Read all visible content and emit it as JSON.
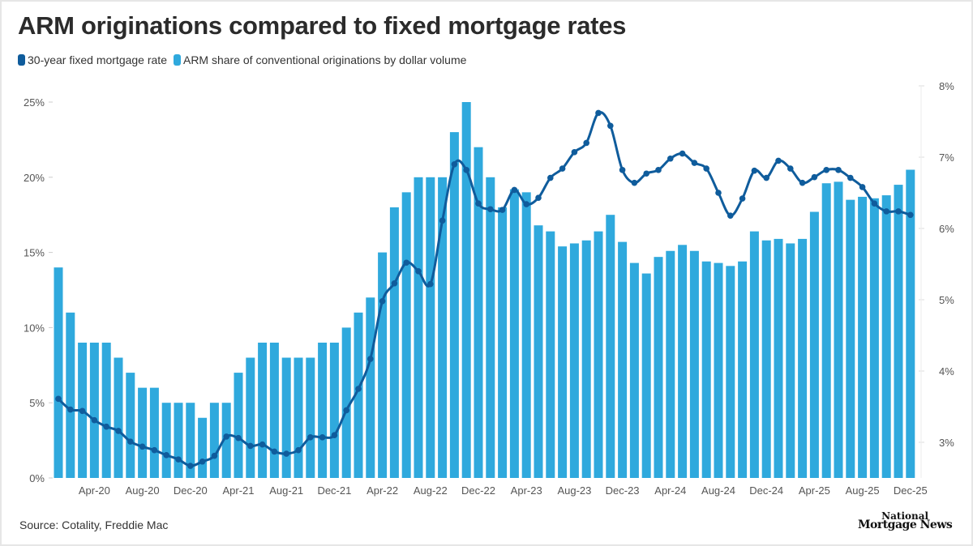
{
  "title": "ARM originations compared to fixed mortgage rates",
  "source": "Source: Cotality, Freddie Mac",
  "logo": {
    "line1": "National",
    "line2": "Mortgage News"
  },
  "colors": {
    "bar": "#2fa9dd",
    "line": "#0f5c9c"
  },
  "chart_data": {
    "type": "bar+line",
    "title": "ARM originations compared to fixed mortgage rates",
    "legend_position": "top-left",
    "grid": false,
    "categories": [
      "Jan-20",
      "Feb-20",
      "Mar-20",
      "Apr-20",
      "May-20",
      "Jun-20",
      "Jul-20",
      "Aug-20",
      "Sep-20",
      "Oct-20",
      "Nov-20",
      "Dec-20",
      "Jan-21",
      "Feb-21",
      "Mar-21",
      "Apr-21",
      "May-21",
      "Jun-21",
      "Jul-21",
      "Aug-21",
      "Sep-21",
      "Oct-21",
      "Nov-21",
      "Dec-21",
      "Jan-22",
      "Feb-22",
      "Mar-22",
      "Apr-22",
      "May-22",
      "Jun-22",
      "Jul-22",
      "Aug-22",
      "Sep-22",
      "Oct-22",
      "Nov-22",
      "Dec-22",
      "Jan-23",
      "Feb-23",
      "Mar-23",
      "Apr-23",
      "May-23",
      "Jun-23",
      "Jul-23",
      "Aug-23",
      "Sep-23",
      "Oct-23",
      "Nov-23",
      "Dec-23",
      "Jan-24",
      "Feb-24",
      "Mar-24",
      "Apr-24",
      "May-24",
      "Jun-24",
      "Jul-24",
      "Aug-24",
      "Sep-24",
      "Oct-24",
      "Nov-24",
      "Dec-24",
      "Jan-25",
      "Feb-25",
      "Mar-25",
      "Apr-25",
      "May-25",
      "Jun-25",
      "Jul-25",
      "Aug-25",
      "Sep-25",
      "Oct-25",
      "Nov-25",
      "Dec-25"
    ],
    "x_tick_labels": [
      "Apr-20",
      "Aug-20",
      "Dec-20",
      "Apr-21",
      "Aug-21",
      "Dec-21",
      "Apr-22",
      "Aug-22",
      "Dec-22",
      "Apr-23",
      "Aug-23",
      "Dec-23",
      "Apr-24",
      "Aug-24",
      "Dec-24",
      "Apr-25",
      "Aug-25",
      "Dec-25"
    ],
    "y_left": {
      "ylim": [
        0,
        25
      ],
      "ticks": [
        "0%",
        "5%",
        "10%",
        "15%",
        "20%",
        "25%"
      ],
      "tick_values": [
        0,
        5,
        10,
        15,
        20,
        25
      ]
    },
    "y_right": {
      "ylim": [
        2.5,
        8
      ],
      "ticks": [
        "3%",
        "4%",
        "5%",
        "6%",
        "7%",
        "8%"
      ],
      "tick_values": [
        3,
        4,
        5,
        6,
        7,
        8
      ]
    },
    "series": [
      {
        "name": "30-year fixed mortgage rate",
        "type": "line",
        "axis": "right",
        "values": [
          3.61,
          3.46,
          3.44,
          3.31,
          3.22,
          3.16,
          3.01,
          2.94,
          2.89,
          2.82,
          2.76,
          2.67,
          2.73,
          2.81,
          3.08,
          3.06,
          2.95,
          2.97,
          2.87,
          2.84,
          2.89,
          3.07,
          3.07,
          3.1,
          3.45,
          3.75,
          4.17,
          4.98,
          5.23,
          5.52,
          5.4,
          5.22,
          6.11,
          6.9,
          6.82,
          6.35,
          6.27,
          6.26,
          6.54,
          6.34,
          6.43,
          6.71,
          6.84,
          7.07,
          7.2,
          7.62,
          7.44,
          6.82,
          6.64,
          6.77,
          6.82,
          6.98,
          7.05,
          6.92,
          6.84,
          6.5,
          6.18,
          6.42,
          6.81,
          6.71,
          6.95,
          6.84,
          6.64,
          6.72,
          6.82,
          6.82,
          6.71,
          6.58,
          6.35,
          6.24,
          6.24,
          6.19
        ]
      },
      {
        "name": "ARM share of conventional originations by dollar volume",
        "type": "bar",
        "axis": "left",
        "values": [
          14,
          11,
          9,
          9,
          9,
          8,
          7,
          6,
          6,
          5,
          5,
          5,
          4,
          5,
          5,
          7,
          8,
          9,
          9,
          8,
          8,
          8,
          9,
          9,
          10,
          11,
          12,
          15,
          18,
          19,
          20,
          20,
          20,
          23,
          25,
          22,
          20,
          18,
          19.2,
          19,
          16.8,
          16.4,
          15.4,
          15.6,
          15.8,
          16.4,
          17.5,
          15.7,
          14.3,
          13.6,
          14.7,
          15.1,
          15.5,
          15.1,
          14.4,
          14.3,
          14.1,
          14.4,
          16.4,
          15.8,
          15.9,
          15.6,
          15.9,
          17.7,
          19.6,
          19.7,
          18.5,
          18.7,
          18.6,
          18.8,
          19.5,
          20.5
        ]
      }
    ]
  }
}
